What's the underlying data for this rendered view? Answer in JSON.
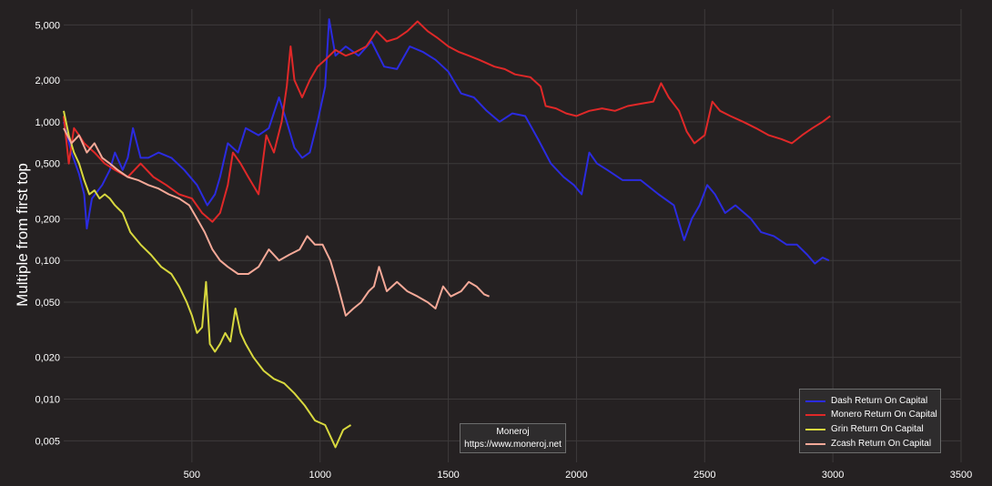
{
  "chart_data": {
    "type": "line",
    "title": "",
    "xlabel": "",
    "ylabel": "Multiple from first top",
    "y_scale": "log",
    "xlim": [
      0,
      3500
    ],
    "ylim": [
      0.0035,
      6.5
    ],
    "x_ticks": [
      500,
      1000,
      1500,
      2000,
      2500,
      3000,
      3500
    ],
    "x_tick_labels": [
      "500",
      "1000",
      "1500",
      "2000",
      "2500",
      "3000",
      "3500"
    ],
    "y_ticks": [
      0.005,
      0.01,
      0.02,
      0.05,
      0.1,
      0.2,
      0.5,
      1,
      2,
      5
    ],
    "y_tick_labels": [
      "0,005",
      "0,010",
      "0,020",
      "0,050",
      "0,100",
      "0,200",
      "0,500",
      "1,000",
      "2,000",
      "5,000"
    ],
    "grid": true,
    "legend_position": "bottom-right",
    "series": [
      {
        "name": "Dash Return On Capital",
        "color": "#2b2be0",
        "points": [
          [
            0,
            1.0
          ],
          [
            30,
            0.6
          ],
          [
            60,
            0.42
          ],
          [
            80,
            0.3
          ],
          [
            90,
            0.17
          ],
          [
            110,
            0.28
          ],
          [
            150,
            0.35
          ],
          [
            180,
            0.45
          ],
          [
            200,
            0.6
          ],
          [
            230,
            0.45
          ],
          [
            250,
            0.55
          ],
          [
            270,
            0.9
          ],
          [
            300,
            0.55
          ],
          [
            330,
            0.55
          ],
          [
            370,
            0.6
          ],
          [
            420,
            0.55
          ],
          [
            470,
            0.45
          ],
          [
            520,
            0.35
          ],
          [
            560,
            0.25
          ],
          [
            590,
            0.3
          ],
          [
            610,
            0.4
          ],
          [
            640,
            0.7
          ],
          [
            680,
            0.6
          ],
          [
            710,
            0.9
          ],
          [
            760,
            0.8
          ],
          [
            800,
            0.9
          ],
          [
            840,
            1.5
          ],
          [
            870,
            1.0
          ],
          [
            900,
            0.65
          ],
          [
            930,
            0.55
          ],
          [
            960,
            0.6
          ],
          [
            990,
            1.0
          ],
          [
            1020,
            1.8
          ],
          [
            1035,
            5.5
          ],
          [
            1060,
            3.0
          ],
          [
            1100,
            3.5
          ],
          [
            1150,
            3.0
          ],
          [
            1200,
            3.8
          ],
          [
            1250,
            2.5
          ],
          [
            1300,
            2.4
          ],
          [
            1350,
            3.5
          ],
          [
            1400,
            3.2
          ],
          [
            1450,
            2.8
          ],
          [
            1500,
            2.3
          ],
          [
            1550,
            1.6
          ],
          [
            1600,
            1.5
          ],
          [
            1650,
            1.2
          ],
          [
            1700,
            1.0
          ],
          [
            1750,
            1.15
          ],
          [
            1800,
            1.1
          ],
          [
            1850,
            0.75
          ],
          [
            1900,
            0.5
          ],
          [
            1950,
            0.4
          ],
          [
            1990,
            0.35
          ],
          [
            2020,
            0.3
          ],
          [
            2050,
            0.6
          ],
          [
            2080,
            0.5
          ],
          [
            2120,
            0.45
          ],
          [
            2180,
            0.38
          ],
          [
            2250,
            0.38
          ],
          [
            2320,
            0.3
          ],
          [
            2380,
            0.25
          ],
          [
            2420,
            0.14
          ],
          [
            2450,
            0.2
          ],
          [
            2480,
            0.25
          ],
          [
            2510,
            0.35
          ],
          [
            2540,
            0.3
          ],
          [
            2580,
            0.22
          ],
          [
            2620,
            0.25
          ],
          [
            2680,
            0.2
          ],
          [
            2720,
            0.16
          ],
          [
            2770,
            0.15
          ],
          [
            2820,
            0.13
          ],
          [
            2860,
            0.13
          ],
          [
            2900,
            0.11
          ],
          [
            2930,
            0.095
          ],
          [
            2960,
            0.105
          ],
          [
            2985,
            0.1
          ]
        ]
      },
      {
        "name": "Monero Return On Capital",
        "color": "#e02828",
        "points": [
          [
            0,
            1.1
          ],
          [
            20,
            0.5
          ],
          [
            40,
            0.9
          ],
          [
            60,
            0.8
          ],
          [
            80,
            0.7
          ],
          [
            120,
            0.6
          ],
          [
            160,
            0.5
          ],
          [
            200,
            0.45
          ],
          [
            250,
            0.4
          ],
          [
            300,
            0.5
          ],
          [
            350,
            0.4
          ],
          [
            400,
            0.35
          ],
          [
            450,
            0.3
          ],
          [
            500,
            0.28
          ],
          [
            540,
            0.22
          ],
          [
            580,
            0.19
          ],
          [
            610,
            0.22
          ],
          [
            640,
            0.35
          ],
          [
            660,
            0.6
          ],
          [
            690,
            0.5
          ],
          [
            720,
            0.4
          ],
          [
            760,
            0.3
          ],
          [
            790,
            0.8
          ],
          [
            820,
            0.6
          ],
          [
            850,
            1.0
          ],
          [
            870,
            1.8
          ],
          [
            885,
            3.5
          ],
          [
            900,
            2.0
          ],
          [
            930,
            1.5
          ],
          [
            960,
            2.0
          ],
          [
            990,
            2.5
          ],
          [
            1020,
            2.8
          ],
          [
            1060,
            3.3
          ],
          [
            1100,
            3.0
          ],
          [
            1140,
            3.2
          ],
          [
            1180,
            3.5
          ],
          [
            1220,
            4.5
          ],
          [
            1260,
            3.8
          ],
          [
            1300,
            4.0
          ],
          [
            1340,
            4.5
          ],
          [
            1380,
            5.3
          ],
          [
            1420,
            4.5
          ],
          [
            1460,
            4.0
          ],
          [
            1500,
            3.5
          ],
          [
            1540,
            3.2
          ],
          [
            1580,
            3.0
          ],
          [
            1620,
            2.8
          ],
          [
            1680,
            2.5
          ],
          [
            1720,
            2.4
          ],
          [
            1760,
            2.2
          ],
          [
            1820,
            2.1
          ],
          [
            1860,
            1.8
          ],
          [
            1880,
            1.3
          ],
          [
            1920,
            1.25
          ],
          [
            1960,
            1.15
          ],
          [
            2000,
            1.1
          ],
          [
            2050,
            1.2
          ],
          [
            2100,
            1.25
          ],
          [
            2150,
            1.2
          ],
          [
            2200,
            1.3
          ],
          [
            2250,
            1.35
          ],
          [
            2300,
            1.4
          ],
          [
            2330,
            1.9
          ],
          [
            2360,
            1.5
          ],
          [
            2400,
            1.2
          ],
          [
            2430,
            0.85
          ],
          [
            2460,
            0.7
          ],
          [
            2500,
            0.8
          ],
          [
            2530,
            1.4
          ],
          [
            2560,
            1.2
          ],
          [
            2600,
            1.1
          ],
          [
            2650,
            1.0
          ],
          [
            2700,
            0.9
          ],
          [
            2750,
            0.8
          ],
          [
            2800,
            0.75
          ],
          [
            2840,
            0.7
          ],
          [
            2880,
            0.8
          ],
          [
            2920,
            0.9
          ],
          [
            2960,
            1.0
          ],
          [
            2990,
            1.1
          ]
        ]
      },
      {
        "name": "Grin Return On Capital",
        "color": "#d8d83e",
        "points": [
          [
            0,
            1.2
          ],
          [
            20,
            0.8
          ],
          [
            40,
            0.6
          ],
          [
            60,
            0.5
          ],
          [
            80,
            0.38
          ],
          [
            100,
            0.3
          ],
          [
            120,
            0.32
          ],
          [
            140,
            0.28
          ],
          [
            160,
            0.3
          ],
          [
            180,
            0.28
          ],
          [
            200,
            0.25
          ],
          [
            230,
            0.22
          ],
          [
            260,
            0.16
          ],
          [
            300,
            0.13
          ],
          [
            340,
            0.11
          ],
          [
            380,
            0.09
          ],
          [
            420,
            0.08
          ],
          [
            450,
            0.065
          ],
          [
            480,
            0.05
          ],
          [
            500,
            0.04
          ],
          [
            520,
            0.03
          ],
          [
            540,
            0.033
          ],
          [
            555,
            0.07
          ],
          [
            570,
            0.025
          ],
          [
            590,
            0.022
          ],
          [
            610,
            0.025
          ],
          [
            630,
            0.03
          ],
          [
            650,
            0.026
          ],
          [
            670,
            0.045
          ],
          [
            690,
            0.03
          ],
          [
            710,
            0.025
          ],
          [
            740,
            0.02
          ],
          [
            780,
            0.016
          ],
          [
            820,
            0.014
          ],
          [
            860,
            0.013
          ],
          [
            900,
            0.011
          ],
          [
            940,
            0.009
          ],
          [
            980,
            0.007
          ],
          [
            1020,
            0.0065
          ],
          [
            1060,
            0.0045
          ],
          [
            1090,
            0.006
          ],
          [
            1120,
            0.0065
          ]
        ]
      },
      {
        "name": "Zcash Return On Capital",
        "color": "#f5a998",
        "points": [
          [
            0,
            0.9
          ],
          [
            30,
            0.7
          ],
          [
            60,
            0.8
          ],
          [
            90,
            0.6
          ],
          [
            120,
            0.7
          ],
          [
            150,
            0.55
          ],
          [
            180,
            0.5
          ],
          [
            210,
            0.45
          ],
          [
            250,
            0.4
          ],
          [
            290,
            0.38
          ],
          [
            330,
            0.35
          ],
          [
            370,
            0.33
          ],
          [
            410,
            0.3
          ],
          [
            450,
            0.28
          ],
          [
            490,
            0.25
          ],
          [
            520,
            0.2
          ],
          [
            550,
            0.16
          ],
          [
            580,
            0.12
          ],
          [
            610,
            0.1
          ],
          [
            640,
            0.09
          ],
          [
            680,
            0.08
          ],
          [
            720,
            0.08
          ],
          [
            760,
            0.09
          ],
          [
            800,
            0.12
          ],
          [
            840,
            0.1
          ],
          [
            880,
            0.11
          ],
          [
            920,
            0.12
          ],
          [
            950,
            0.15
          ],
          [
            980,
            0.13
          ],
          [
            1010,
            0.13
          ],
          [
            1040,
            0.1
          ],
          [
            1070,
            0.065
          ],
          [
            1100,
            0.04
          ],
          [
            1130,
            0.045
          ],
          [
            1160,
            0.05
          ],
          [
            1190,
            0.06
          ],
          [
            1210,
            0.065
          ],
          [
            1230,
            0.09
          ],
          [
            1260,
            0.06
          ],
          [
            1300,
            0.07
          ],
          [
            1340,
            0.06
          ],
          [
            1380,
            0.055
          ],
          [
            1420,
            0.05
          ],
          [
            1450,
            0.045
          ],
          [
            1480,
            0.065
          ],
          [
            1510,
            0.055
          ],
          [
            1550,
            0.06
          ],
          [
            1580,
            0.07
          ],
          [
            1610,
            0.065
          ],
          [
            1640,
            0.057
          ],
          [
            1660,
            0.055
          ]
        ]
      }
    ]
  },
  "watermark": {
    "name": "Moneroj",
    "url": "https://www.moneroj.net"
  }
}
